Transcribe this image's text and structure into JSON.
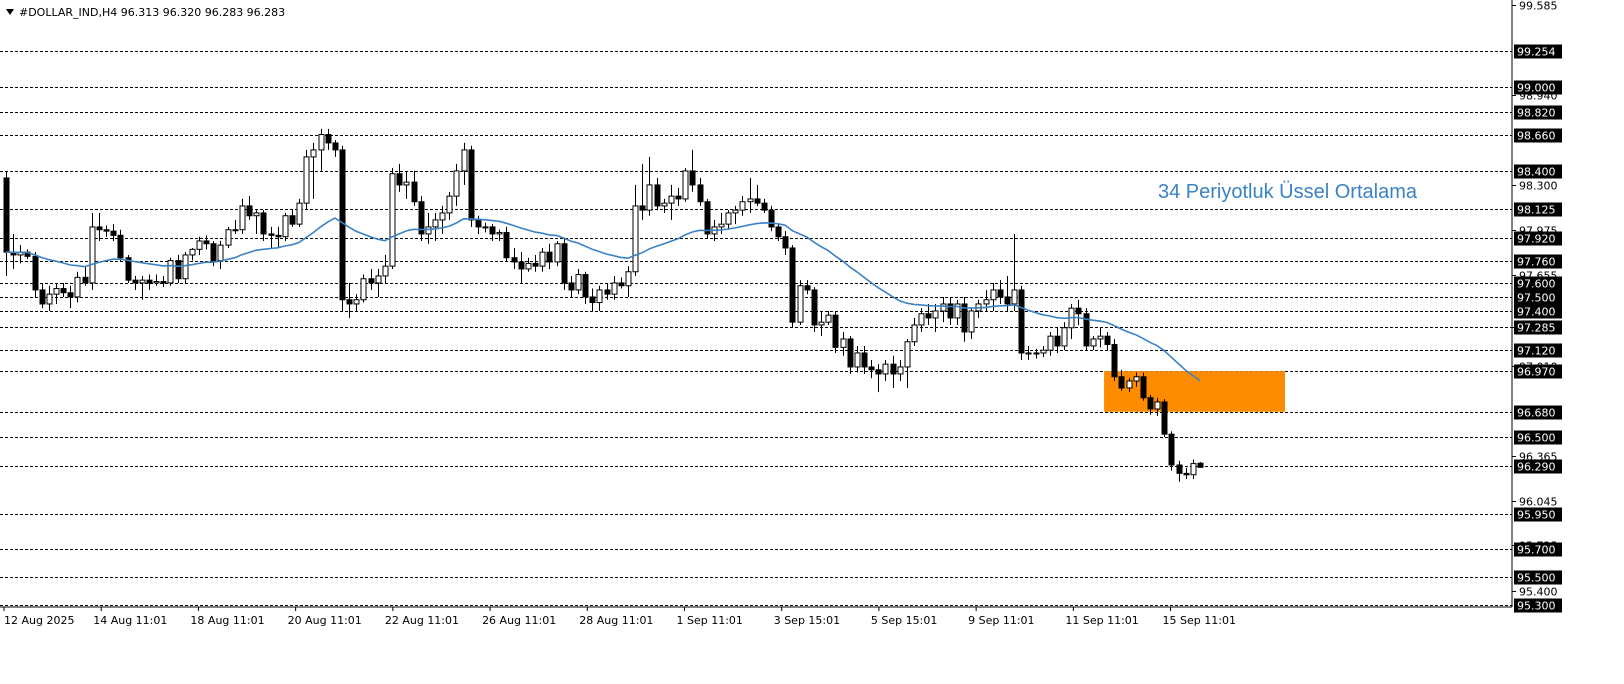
{
  "header": {
    "symbol_line": "#DOLLAR_IND,H4  96.313 96.320 96.283 96.283"
  },
  "annotation": {
    "ema_label": "34 Periyotluk Üssel Ortalama"
  },
  "colors": {
    "ema": "#3b82c4",
    "zone": "#ff8c00",
    "grid": "#000000",
    "bull": "#ffffff",
    "bear": "#000000"
  },
  "chart_data": {
    "type": "candlestick",
    "title": "#DOLLAR_IND,H4",
    "ohlc_last": {
      "open": 96.313,
      "high": 96.32,
      "low": 96.283,
      "close": 96.283
    },
    "y_range": [
      95.3,
      99.585
    ],
    "x_labels": [
      "12 Aug 2025",
      "14 Aug 11:01",
      "18 Aug 11:01",
      "20 Aug 11:01",
      "22 Aug 11:01",
      "26 Aug 11:01",
      "28 Aug 11:01",
      "1 Sep 11:01",
      "3 Sep 15:01",
      "5 Sep 15:01",
      "9 Sep 11:01",
      "11 Sep 11:01",
      "15 Sep 11:01"
    ],
    "y_ticks": [
      99.585,
      98.94,
      98.3,
      97.975,
      97.655,
      97.285,
      97.01,
      96.365,
      96.045,
      95.725,
      95.4
    ],
    "levels": [
      99.254,
      99.0,
      98.82,
      98.66,
      98.4,
      98.125,
      97.92,
      97.76,
      97.6,
      97.5,
      97.4,
      97.285,
      97.12,
      96.97,
      96.68,
      96.5,
      96.29,
      95.95,
      95.7,
      95.5,
      95.3
    ],
    "zone": {
      "from": 96.68,
      "to": 96.97
    },
    "ema_period": 34,
    "candles": [
      {
        "o": 98.35,
        "h": 98.4,
        "l": 97.65,
        "c": 97.82
      },
      {
        "o": 97.82,
        "h": 97.95,
        "l": 97.7,
        "c": 97.8
      },
      {
        "o": 97.8,
        "h": 97.87,
        "l": 97.74,
        "c": 97.82
      },
      {
        "o": 97.82,
        "h": 97.84,
        "l": 97.77,
        "c": 97.79
      },
      {
        "o": 97.79,
        "h": 97.82,
        "l": 97.5,
        "c": 97.55
      },
      {
        "o": 97.55,
        "h": 97.6,
        "l": 97.42,
        "c": 97.45
      },
      {
        "o": 97.45,
        "h": 97.58,
        "l": 97.4,
        "c": 97.52
      },
      {
        "o": 97.52,
        "h": 97.6,
        "l": 97.45,
        "c": 97.56
      },
      {
        "o": 97.56,
        "h": 97.6,
        "l": 97.5,
        "c": 97.53
      },
      {
        "o": 97.53,
        "h": 97.58,
        "l": 97.42,
        "c": 97.5
      },
      {
        "o": 97.5,
        "h": 97.68,
        "l": 97.46,
        "c": 97.64
      },
      {
        "o": 97.64,
        "h": 97.72,
        "l": 97.58,
        "c": 97.6
      },
      {
        "o": 97.6,
        "h": 98.1,
        "l": 97.55,
        "c": 98.0
      },
      {
        "o": 98.0,
        "h": 98.1,
        "l": 97.9,
        "c": 97.98
      },
      {
        "o": 97.98,
        "h": 98.01,
        "l": 97.93,
        "c": 97.97
      },
      {
        "o": 97.97,
        "h": 98.02,
        "l": 97.9,
        "c": 97.94
      },
      {
        "o": 97.94,
        "h": 97.98,
        "l": 97.75,
        "c": 97.78
      },
      {
        "o": 97.78,
        "h": 97.8,
        "l": 97.6,
        "c": 97.62
      },
      {
        "o": 97.62,
        "h": 97.65,
        "l": 97.55,
        "c": 97.6
      },
      {
        "o": 97.6,
        "h": 97.65,
        "l": 97.48,
        "c": 97.62
      },
      {
        "o": 97.62,
        "h": 97.66,
        "l": 97.55,
        "c": 97.6
      },
      {
        "o": 97.6,
        "h": 97.66,
        "l": 97.58,
        "c": 97.61
      },
      {
        "o": 97.61,
        "h": 97.65,
        "l": 97.57,
        "c": 97.6
      },
      {
        "o": 97.6,
        "h": 97.78,
        "l": 97.58,
        "c": 97.76
      },
      {
        "o": 97.76,
        "h": 97.8,
        "l": 97.6,
        "c": 97.63
      },
      {
        "o": 97.63,
        "h": 97.82,
        "l": 97.6,
        "c": 97.8
      },
      {
        "o": 97.8,
        "h": 97.85,
        "l": 97.76,
        "c": 97.84
      },
      {
        "o": 97.84,
        "h": 97.93,
        "l": 97.8,
        "c": 97.9
      },
      {
        "o": 97.9,
        "h": 97.94,
        "l": 97.84,
        "c": 97.88
      },
      {
        "o": 97.88,
        "h": 97.9,
        "l": 97.72,
        "c": 97.76
      },
      {
        "o": 97.76,
        "h": 97.9,
        "l": 97.7,
        "c": 97.87
      },
      {
        "o": 97.87,
        "h": 98.0,
        "l": 97.85,
        "c": 97.98
      },
      {
        "o": 97.98,
        "h": 98.05,
        "l": 97.95,
        "c": 97.98
      },
      {
        "o": 97.98,
        "h": 98.2,
        "l": 97.95,
        "c": 98.15
      },
      {
        "o": 98.15,
        "h": 98.22,
        "l": 98.05,
        "c": 98.08
      },
      {
        "o": 98.08,
        "h": 98.12,
        "l": 97.95,
        "c": 98.1
      },
      {
        "o": 98.1,
        "h": 98.12,
        "l": 97.9,
        "c": 97.95
      },
      {
        "o": 97.95,
        "h": 98.0,
        "l": 97.85,
        "c": 97.94
      },
      {
        "o": 97.94,
        "h": 98.0,
        "l": 97.85,
        "c": 97.93
      },
      {
        "o": 97.93,
        "h": 98.1,
        "l": 97.9,
        "c": 98.08
      },
      {
        "o": 98.08,
        "h": 98.12,
        "l": 98.0,
        "c": 98.02
      },
      {
        "o": 98.02,
        "h": 98.2,
        "l": 98.0,
        "c": 98.17
      },
      {
        "o": 98.17,
        "h": 98.55,
        "l": 98.12,
        "c": 98.5
      },
      {
        "o": 98.5,
        "h": 98.6,
        "l": 98.2,
        "c": 98.55
      },
      {
        "o": 98.55,
        "h": 98.7,
        "l": 98.4,
        "c": 98.66
      },
      {
        "o": 98.66,
        "h": 98.7,
        "l": 98.55,
        "c": 98.6
      },
      {
        "o": 98.6,
        "h": 98.62,
        "l": 98.5,
        "c": 98.55
      },
      {
        "o": 98.55,
        "h": 98.58,
        "l": 97.4,
        "c": 97.48
      },
      {
        "o": 97.48,
        "h": 97.6,
        "l": 97.35,
        "c": 97.45
      },
      {
        "o": 97.45,
        "h": 97.52,
        "l": 97.4,
        "c": 97.48
      },
      {
        "o": 97.48,
        "h": 97.66,
        "l": 97.46,
        "c": 97.63
      },
      {
        "o": 97.63,
        "h": 97.7,
        "l": 97.55,
        "c": 97.6
      },
      {
        "o": 97.6,
        "h": 97.7,
        "l": 97.5,
        "c": 97.65
      },
      {
        "o": 97.65,
        "h": 97.8,
        "l": 97.6,
        "c": 97.72
      },
      {
        "o": 97.72,
        "h": 98.42,
        "l": 97.7,
        "c": 98.38
      },
      {
        "o": 98.38,
        "h": 98.45,
        "l": 98.25,
        "c": 98.3
      },
      {
        "o": 98.3,
        "h": 98.4,
        "l": 98.2,
        "c": 98.32
      },
      {
        "o": 98.32,
        "h": 98.4,
        "l": 98.15,
        "c": 98.18
      },
      {
        "o": 98.18,
        "h": 98.22,
        "l": 97.9,
        "c": 97.95
      },
      {
        "o": 97.95,
        "h": 98.1,
        "l": 97.88,
        "c": 98.0
      },
      {
        "o": 98.0,
        "h": 98.1,
        "l": 97.9,
        "c": 98.05
      },
      {
        "o": 98.05,
        "h": 98.15,
        "l": 97.95,
        "c": 98.1
      },
      {
        "o": 98.1,
        "h": 98.25,
        "l": 98.05,
        "c": 98.22
      },
      {
        "o": 98.22,
        "h": 98.45,
        "l": 98.15,
        "c": 98.4
      },
      {
        "o": 98.4,
        "h": 98.6,
        "l": 98.3,
        "c": 98.55
      },
      {
        "o": 98.55,
        "h": 98.58,
        "l": 98.0,
        "c": 98.05
      },
      {
        "o": 98.05,
        "h": 98.08,
        "l": 97.95,
        "c": 98.0
      },
      {
        "o": 98.0,
        "h": 98.03,
        "l": 97.96,
        "c": 98.0
      },
      {
        "o": 98.0,
        "h": 98.02,
        "l": 97.9,
        "c": 97.95
      },
      {
        "o": 97.95,
        "h": 97.98,
        "l": 97.9,
        "c": 97.96
      },
      {
        "o": 97.96,
        "h": 98.0,
        "l": 97.75,
        "c": 97.78
      },
      {
        "o": 97.78,
        "h": 97.85,
        "l": 97.7,
        "c": 97.75
      },
      {
        "o": 97.75,
        "h": 97.82,
        "l": 97.6,
        "c": 97.7
      },
      {
        "o": 97.7,
        "h": 97.78,
        "l": 97.68,
        "c": 97.74
      },
      {
        "o": 97.74,
        "h": 97.8,
        "l": 97.68,
        "c": 97.72
      },
      {
        "o": 97.72,
        "h": 97.85,
        "l": 97.68,
        "c": 97.82
      },
      {
        "o": 97.82,
        "h": 97.88,
        "l": 97.7,
        "c": 97.75
      },
      {
        "o": 97.75,
        "h": 97.9,
        "l": 97.72,
        "c": 97.88
      },
      {
        "o": 97.88,
        "h": 97.92,
        "l": 97.55,
        "c": 97.6
      },
      {
        "o": 97.6,
        "h": 97.65,
        "l": 97.5,
        "c": 97.55
      },
      {
        "o": 97.55,
        "h": 97.7,
        "l": 97.52,
        "c": 97.66
      },
      {
        "o": 97.66,
        "h": 97.68,
        "l": 97.45,
        "c": 97.5
      },
      {
        "o": 97.5,
        "h": 97.56,
        "l": 97.4,
        "c": 97.46
      },
      {
        "o": 97.46,
        "h": 97.58,
        "l": 97.4,
        "c": 97.55
      },
      {
        "o": 97.55,
        "h": 97.6,
        "l": 97.48,
        "c": 97.52
      },
      {
        "o": 97.52,
        "h": 97.65,
        "l": 97.48,
        "c": 97.6
      },
      {
        "o": 97.6,
        "h": 97.64,
        "l": 97.56,
        "c": 97.58
      },
      {
        "o": 97.58,
        "h": 97.72,
        "l": 97.5,
        "c": 97.68
      },
      {
        "o": 97.68,
        "h": 98.3,
        "l": 97.65,
        "c": 98.15
      },
      {
        "o": 98.15,
        "h": 98.45,
        "l": 98.05,
        "c": 98.12
      },
      {
        "o": 98.12,
        "h": 98.5,
        "l": 98.08,
        "c": 98.3
      },
      {
        "o": 98.3,
        "h": 98.35,
        "l": 98.12,
        "c": 98.15
      },
      {
        "o": 98.15,
        "h": 98.2,
        "l": 98.1,
        "c": 98.17
      },
      {
        "o": 98.17,
        "h": 98.3,
        "l": 98.05,
        "c": 98.22
      },
      {
        "o": 98.22,
        "h": 98.28,
        "l": 98.15,
        "c": 98.2
      },
      {
        "o": 98.2,
        "h": 98.42,
        "l": 98.18,
        "c": 98.4
      },
      {
        "o": 98.4,
        "h": 98.55,
        "l": 98.25,
        "c": 98.3
      },
      {
        "o": 98.3,
        "h": 98.35,
        "l": 98.15,
        "c": 98.18
      },
      {
        "o": 98.18,
        "h": 98.2,
        "l": 97.92,
        "c": 97.95
      },
      {
        "o": 97.95,
        "h": 98.05,
        "l": 97.9,
        "c": 98.0
      },
      {
        "o": 98.0,
        "h": 98.1,
        "l": 97.95,
        "c": 98.02
      },
      {
        "o": 98.02,
        "h": 98.12,
        "l": 97.98,
        "c": 98.1
      },
      {
        "o": 98.1,
        "h": 98.15,
        "l": 98.02,
        "c": 98.12
      },
      {
        "o": 98.12,
        "h": 98.22,
        "l": 98.08,
        "c": 98.18
      },
      {
        "o": 98.18,
        "h": 98.35,
        "l": 98.1,
        "c": 98.2
      },
      {
        "o": 98.2,
        "h": 98.3,
        "l": 98.15,
        "c": 98.17
      },
      {
        "o": 98.17,
        "h": 98.2,
        "l": 98.1,
        "c": 98.12
      },
      {
        "o": 98.12,
        "h": 98.15,
        "l": 97.97,
        "c": 98.0
      },
      {
        "o": 98.0,
        "h": 98.02,
        "l": 97.9,
        "c": 97.93
      },
      {
        "o": 97.93,
        "h": 97.97,
        "l": 97.8,
        "c": 97.85
      },
      {
        "o": 97.85,
        "h": 97.87,
        "l": 97.28,
        "c": 97.32
      },
      {
        "o": 97.32,
        "h": 97.62,
        "l": 97.3,
        "c": 97.58
      },
      {
        "o": 97.58,
        "h": 97.62,
        "l": 97.52,
        "c": 97.55
      },
      {
        "o": 97.55,
        "h": 97.57,
        "l": 97.25,
        "c": 97.3
      },
      {
        "o": 97.3,
        "h": 97.4,
        "l": 97.22,
        "c": 97.32
      },
      {
        "o": 97.32,
        "h": 97.4,
        "l": 97.3,
        "c": 97.37
      },
      {
        "o": 97.37,
        "h": 97.4,
        "l": 97.1,
        "c": 97.14
      },
      {
        "o": 97.14,
        "h": 97.25,
        "l": 97.08,
        "c": 97.2
      },
      {
        "o": 97.2,
        "h": 97.22,
        "l": 96.95,
        "c": 97.0
      },
      {
        "o": 97.0,
        "h": 97.15,
        "l": 96.96,
        "c": 97.1
      },
      {
        "o": 97.1,
        "h": 97.15,
        "l": 96.95,
        "c": 97.0
      },
      {
        "o": 97.0,
        "h": 97.05,
        "l": 96.92,
        "c": 96.98
      },
      {
        "o": 96.98,
        "h": 97.02,
        "l": 96.82,
        "c": 96.95
      },
      {
        "o": 96.95,
        "h": 97.05,
        "l": 96.9,
        "c": 97.02
      },
      {
        "o": 97.02,
        "h": 97.08,
        "l": 96.85,
        "c": 96.95
      },
      {
        "o": 96.95,
        "h": 97.05,
        "l": 96.9,
        "c": 97.0
      },
      {
        "o": 97.0,
        "h": 97.2,
        "l": 96.85,
        "c": 97.18
      },
      {
        "o": 97.18,
        "h": 97.35,
        "l": 97.15,
        "c": 97.3
      },
      {
        "o": 97.3,
        "h": 97.42,
        "l": 97.25,
        "c": 97.38
      },
      {
        "o": 97.38,
        "h": 97.45,
        "l": 97.3,
        "c": 97.35
      },
      {
        "o": 97.35,
        "h": 97.45,
        "l": 97.25,
        "c": 97.4
      },
      {
        "o": 97.4,
        "h": 97.5,
        "l": 97.32,
        "c": 97.45
      },
      {
        "o": 97.45,
        "h": 97.5,
        "l": 97.3,
        "c": 97.35
      },
      {
        "o": 97.35,
        "h": 97.48,
        "l": 97.3,
        "c": 97.45
      },
      {
        "o": 97.45,
        "h": 97.5,
        "l": 97.18,
        "c": 97.25
      },
      {
        "o": 97.25,
        "h": 97.42,
        "l": 97.2,
        "c": 97.4
      },
      {
        "o": 97.4,
        "h": 97.48,
        "l": 97.35,
        "c": 97.45
      },
      {
        "o": 97.45,
        "h": 97.55,
        "l": 97.4,
        "c": 97.48
      },
      {
        "o": 97.48,
        "h": 97.6,
        "l": 97.4,
        "c": 97.55
      },
      {
        "o": 97.55,
        "h": 97.62,
        "l": 97.45,
        "c": 97.5
      },
      {
        "o": 97.5,
        "h": 97.65,
        "l": 97.4,
        "c": 97.45
      },
      {
        "o": 97.45,
        "h": 97.95,
        "l": 97.4,
        "c": 97.55
      },
      {
        "o": 97.55,
        "h": 97.58,
        "l": 97.05,
        "c": 97.1
      },
      {
        "o": 97.1,
        "h": 97.15,
        "l": 97.05,
        "c": 97.1
      },
      {
        "o": 97.1,
        "h": 97.13,
        "l": 97.06,
        "c": 97.1
      },
      {
        "o": 97.1,
        "h": 97.15,
        "l": 97.07,
        "c": 97.12
      },
      {
        "o": 97.12,
        "h": 97.25,
        "l": 97.08,
        "c": 97.22
      },
      {
        "o": 97.22,
        "h": 97.28,
        "l": 97.1,
        "c": 97.15
      },
      {
        "o": 97.15,
        "h": 97.32,
        "l": 97.12,
        "c": 97.28
      },
      {
        "o": 97.28,
        "h": 97.45,
        "l": 97.2,
        "c": 97.42
      },
      {
        "o": 97.42,
        "h": 97.48,
        "l": 97.3,
        "c": 97.38
      },
      {
        "o": 97.38,
        "h": 97.42,
        "l": 97.12,
        "c": 97.15
      },
      {
        "o": 97.15,
        "h": 97.22,
        "l": 97.12,
        "c": 97.2
      },
      {
        "o": 97.2,
        "h": 97.28,
        "l": 97.14,
        "c": 97.22
      },
      {
        "o": 97.22,
        "h": 97.25,
        "l": 97.12,
        "c": 97.16
      },
      {
        "o": 97.16,
        "h": 97.2,
        "l": 96.9,
        "c": 96.93
      },
      {
        "o": 96.93,
        "h": 96.98,
        "l": 96.83,
        "c": 96.85
      },
      {
        "o": 96.85,
        "h": 96.92,
        "l": 96.82,
        "c": 96.9
      },
      {
        "o": 96.9,
        "h": 96.96,
        "l": 96.86,
        "c": 96.93
      },
      {
        "o": 96.93,
        "h": 96.96,
        "l": 96.76,
        "c": 96.78
      },
      {
        "o": 96.78,
        "h": 96.8,
        "l": 96.66,
        "c": 96.7
      },
      {
        "o": 96.7,
        "h": 96.78,
        "l": 96.65,
        "c": 96.75
      },
      {
        "o": 96.75,
        "h": 96.77,
        "l": 96.5,
        "c": 96.52
      },
      {
        "o": 96.52,
        "h": 96.54,
        "l": 96.26,
        "c": 96.3
      },
      {
        "o": 96.3,
        "h": 96.33,
        "l": 96.18,
        "c": 96.24
      },
      {
        "o": 96.24,
        "h": 96.28,
        "l": 96.2,
        "c": 96.23
      },
      {
        "o": 96.23,
        "h": 96.34,
        "l": 96.2,
        "c": 96.31
      },
      {
        "o": 96.313,
        "h": 96.32,
        "l": 96.283,
        "c": 96.283
      }
    ]
  }
}
